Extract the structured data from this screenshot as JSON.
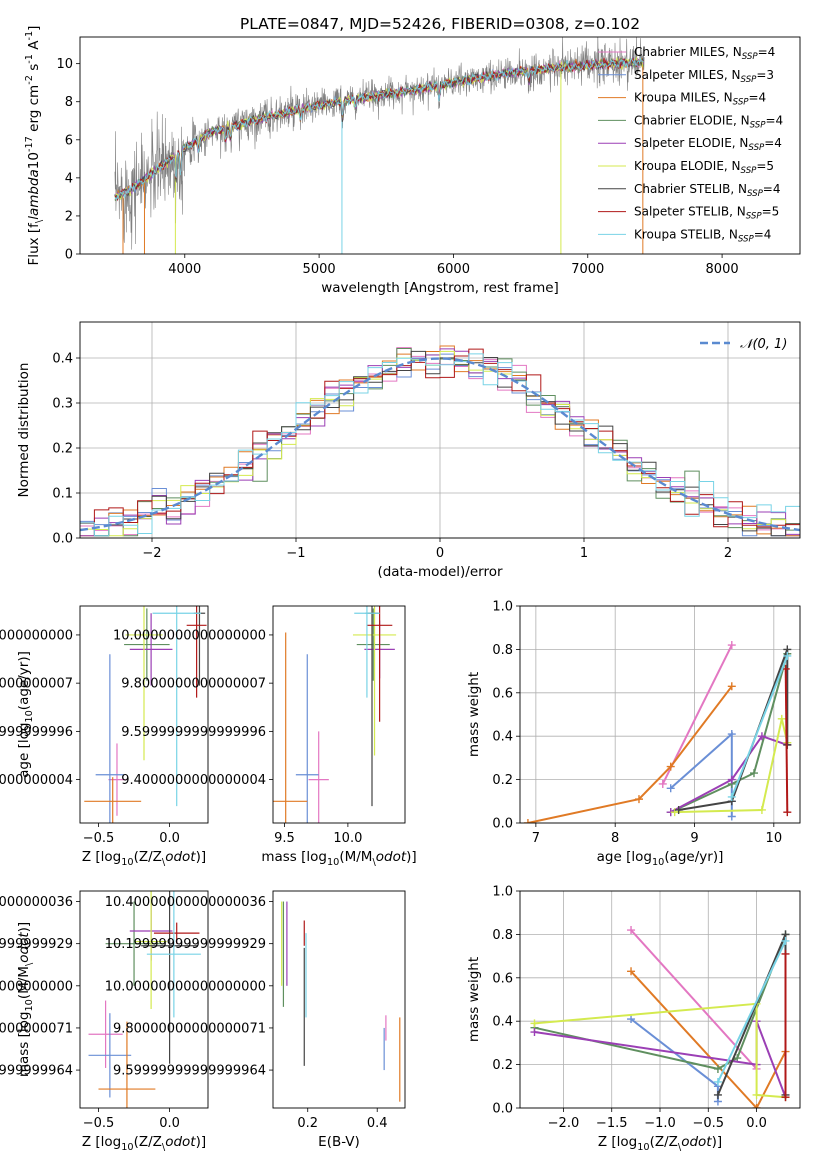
{
  "figure": {
    "title": "PLATE=0847, MJD=52426, FIBERID=0308, z=0.102"
  },
  "models": [
    {
      "name": "Chabrier MILES",
      "nssp": "4",
      "color": "#e377c2"
    },
    {
      "name": "Salpeter MILES",
      "nssp": "3",
      "color": "#6a8fd6"
    },
    {
      "name": "Kroupa MILES",
      "nssp": "4",
      "color": "#e07a25"
    },
    {
      "name": "Chabrier ELODIE",
      "nssp": "4",
      "color": "#5f8f5f"
    },
    {
      "name": "Salpeter ELODIE",
      "nssp": "4",
      "color": "#9b3fb5"
    },
    {
      "name": "Kroupa ELODIE",
      "nssp": "5",
      "color": "#d4ea4f"
    },
    {
      "name": "Chabrier STELIB",
      "nssp": "4",
      "color": "#444444"
    },
    {
      "name": "Salpeter STELIB",
      "nssp": "5",
      "color": "#b01818"
    },
    {
      "name": "Kroupa STELIB",
      "nssp": "4",
      "color": "#78d3e6"
    }
  ],
  "chart_data": [
    {
      "type": "line",
      "id": "spectrum",
      "xlabel": "wavelength [Angstrom, rest frame]",
      "ylabel": "Flux [f$_\\lambda$10$^{-17}$ erg cm$^{-2}$ s$^{-1}$ A$^{-1}$]",
      "xlim": [
        3220,
        8580
      ],
      "ylim": [
        0,
        11.4
      ],
      "xticks": [
        4000,
        5000,
        6000,
        7000,
        8000
      ],
      "yticks": [
        0,
        2,
        4,
        6,
        8,
        10
      ],
      "data_color": "#808080",
      "continuum": {
        "x": [
          3480,
          3600,
          3750,
          3900,
          4000,
          4200,
          4500,
          4800,
          5000,
          5300,
          5600,
          6000,
          6400,
          6800,
          7200,
          7400
        ],
        "y": [
          3.0,
          3.4,
          4.2,
          5.0,
          5.6,
          6.4,
          7.0,
          7.5,
          7.8,
          8.2,
          8.5,
          9.0,
          9.5,
          9.8,
          10.0,
          10.1
        ]
      },
      "grid": false
    },
    {
      "type": "bar",
      "id": "residuals",
      "xlabel": "(data-model)/error",
      "ylabel": "Normed distribution",
      "xlim": [
        -2.5,
        2.5
      ],
      "ylim": [
        0,
        0.48
      ],
      "xticks": [
        -2,
        -1,
        0,
        1,
        2
      ],
      "yticks": [
        0.0,
        0.1,
        0.2,
        0.3,
        0.4
      ],
      "legend": "$\\mathcal{N}(0, 1)$",
      "legend_position": "top-right",
      "grid": true,
      "histogram_profile": "gaussian with sigma=1, binned in 0.1 steps"
    },
    {
      "type": "scatter",
      "id": "age-vs-Z",
      "xlabel": "Z [log$_{10}$(Z/Z$_\\odot$)]",
      "ylabel": "age  [log$_{10}$(age/yr)]",
      "xlim": [
        -0.63,
        0.27
      ],
      "ylim": [
        9.22,
        10.12
      ],
      "xticks": [
        -0.5,
        0.0
      ],
      "yticks": [
        9.4,
        9.6,
        9.8,
        10.0
      ],
      "points": [
        {
          "m": 0,
          "x": -0.37,
          "y": 9.4,
          "xerr": 0.06,
          "yerr": 0.15
        },
        {
          "m": 1,
          "x": -0.42,
          "y": 9.42,
          "xerr": 0.1,
          "yerr": 0.5
        },
        {
          "m": 2,
          "x": -0.4,
          "y": 9.31,
          "xerr": 0.2,
          "yerr": 0.1
        },
        {
          "m": 3,
          "x": -0.16,
          "y": 9.96,
          "xerr": 0.16,
          "yerr": 0.15
        },
        {
          "m": 4,
          "x": -0.13,
          "y": 9.94,
          "xerr": 0.15,
          "yerr": 0.15
        },
        {
          "m": 5,
          "x": -0.18,
          "y": 10.0,
          "xerr": 0.13,
          "yerr": 0.52
        },
        {
          "m": 6,
          "x": 0.21,
          "y": 10.09,
          "xerr": 0.04,
          "yerr": 0.3
        },
        {
          "m": 7,
          "x": 0.19,
          "y": 10.04,
          "xerr": 0.07,
          "yerr": 0.3
        },
        {
          "m": 8,
          "x": 0.05,
          "y": 10.09,
          "xerr": 0.17,
          "yerr": 0.8
        }
      ]
    },
    {
      "type": "scatter",
      "id": "age-vs-mass",
      "xlabel": "mass [log$_{10}$(M/M$_\\odot$)]",
      "ylabel": "",
      "xlim": [
        9.41,
        10.45
      ],
      "ylim": [
        9.22,
        10.12
      ],
      "xticks": [
        9.5,
        10.0
      ],
      "yticks": [
        9.4,
        9.6,
        9.8,
        10.0
      ],
      "points": [
        {
          "m": 0,
          "x": 9.77,
          "y": 9.4,
          "xerr": 0.08,
          "yerr": 0.2
        },
        {
          "m": 1,
          "x": 9.68,
          "y": 9.42,
          "xerr": 0.09,
          "yerr": 0.5
        },
        {
          "m": 2,
          "x": 9.51,
          "y": 9.31,
          "xerr": 0.17,
          "yerr": 0.7
        },
        {
          "m": 3,
          "x": 10.2,
          "y": 9.96,
          "xerr": 0.13,
          "yerr": 0.15
        },
        {
          "m": 4,
          "x": 10.25,
          "y": 9.94,
          "xerr": 0.12,
          "yerr": 0.12
        },
        {
          "m": 5,
          "x": 10.21,
          "y": 10.0,
          "xerr": 0.17,
          "yerr": 0.5
        },
        {
          "m": 6,
          "x": 10.19,
          "y": 10.09,
          "xerr": 0.05,
          "yerr": 0.8
        },
        {
          "m": 7,
          "x": 10.25,
          "y": 10.04,
          "xerr": 0.1,
          "yerr": 0.4
        },
        {
          "m": 8,
          "x": 10.15,
          "y": 10.09,
          "xerr": 0.1,
          "yerr": 0.35
        }
      ]
    },
    {
      "type": "line",
      "id": "weight-vs-age",
      "xlabel": "age  [log$_{10}$(age/yr)]",
      "ylabel": "mass weight",
      "xlim": [
        6.8,
        10.33
      ],
      "ylim": [
        0,
        1.0
      ],
      "xticks": [
        7,
        8,
        9,
        10
      ],
      "yticks": [
        0.0,
        0.2,
        0.4,
        0.6,
        0.8,
        1.0
      ],
      "grid": true,
      "series": [
        {
          "m": 0,
          "x": [
            8.6,
            9.47
          ],
          "y": [
            0.18,
            0.82
          ]
        },
        {
          "m": 1,
          "x": [
            8.7,
            9.47,
            9.47,
            9.47
          ],
          "y": [
            0.16,
            0.41,
            0.1,
            0.03
          ]
        },
        {
          "m": 2,
          "x": [
            6.9,
            8.3,
            8.7,
            9.47
          ],
          "y": [
            0.0,
            0.11,
            0.26,
            0.63
          ]
        },
        {
          "m": 3,
          "x": [
            8.7,
            9.47,
            9.75,
            10.17
          ],
          "y": [
            0.05,
            0.18,
            0.23,
            0.78
          ]
        },
        {
          "m": 4,
          "x": [
            8.7,
            9.47,
            9.85,
            10.17
          ],
          "y": [
            0.05,
            0.2,
            0.4,
            0.36
          ]
        },
        {
          "m": 5,
          "x": [
            8.75,
            9.85,
            10.1,
            10.17
          ],
          "y": [
            0.05,
            0.06,
            0.48,
            0.37
          ]
        },
        {
          "m": 6,
          "x": [
            8.8,
            9.47,
            10.17,
            10.17
          ],
          "y": [
            0.06,
            0.1,
            0.8,
            0.36
          ]
        },
        {
          "m": 7,
          "x": [
            10.15,
            10.17
          ],
          "y": [
            0.71,
            0.05
          ]
        },
        {
          "m": 8,
          "x": [
            9.47,
            10.17
          ],
          "y": [
            0.12,
            0.77
          ]
        }
      ]
    },
    {
      "type": "scatter",
      "id": "mass-vs-Z",
      "xlabel": "Z [log$_{10}$(Z/Z$_\\odot$)]",
      "ylabel": "mass [log$_{10}$(M/M$_\\odot$)]",
      "xlim": [
        -0.63,
        0.27
      ],
      "ylim": [
        9.42,
        10.45
      ],
      "xticks": [
        -0.5,
        0.0
      ],
      "yticks": [
        9.6,
        9.8,
        10.0,
        10.2,
        10.4
      ],
      "points": [
        {
          "m": 0,
          "x": -0.45,
          "y": 9.77,
          "xerr": 0.12,
          "yerr": 0.16
        },
        {
          "m": 1,
          "x": -0.42,
          "y": 9.67,
          "xerr": 0.15,
          "yerr": 0.2
        },
        {
          "m": 2,
          "x": -0.3,
          "y": 9.51,
          "xerr": 0.2,
          "yerr": 0.32
        },
        {
          "m": 3,
          "x": -0.25,
          "y": 10.2,
          "xerr": 0.2,
          "yerr": 0.2
        },
        {
          "m": 4,
          "x": -0.13,
          "y": 10.26,
          "xerr": 0.15,
          "yerr": 0.14
        },
        {
          "m": 5,
          "x": -0.13,
          "y": 10.21,
          "xerr": 0.11,
          "yerr": 0.32
        },
        {
          "m": 6,
          "x": 0.0,
          "y": 10.19,
          "xerr": 0.2,
          "yerr": 0.56
        },
        {
          "m": 7,
          "x": 0.05,
          "y": 10.25,
          "xerr": 0.16,
          "yerr": 0.05
        },
        {
          "m": 8,
          "x": 0.03,
          "y": 10.15,
          "xerr": 0.19,
          "yerr": 0.3
        }
      ]
    },
    {
      "type": "scatter",
      "id": "mass-vs-ebv",
      "xlabel": "E(B-V)",
      "ylabel": "",
      "xlim": [
        0.1,
        0.48
      ],
      "ylim": [
        9.42,
        10.45
      ],
      "xticks": [
        0.2,
        0.4
      ],
      "yticks": [
        9.6,
        9.8,
        10.0,
        10.2,
        10.4
      ],
      "points": [
        {
          "m": 0,
          "x": 0.425,
          "y": 9.8,
          "xerr": 0.0,
          "yerr": 0.06
        },
        {
          "m": 1,
          "x": 0.42,
          "y": 9.7,
          "xerr": 0.0,
          "yerr": 0.1
        },
        {
          "m": 2,
          "x": 0.465,
          "y": 9.65,
          "xerr": 0.0,
          "yerr": 0.2
        },
        {
          "m": 3,
          "x": 0.13,
          "y": 10.15,
          "xerr": 0.0,
          "yerr": 0.25
        },
        {
          "m": 4,
          "x": 0.14,
          "y": 10.2,
          "xerr": 0.0,
          "yerr": 0.2
        },
        {
          "m": 5,
          "x": 0.125,
          "y": 10.2,
          "xerr": 0.0,
          "yerr": 0.2
        },
        {
          "m": 6,
          "x": 0.19,
          "y": 9.9,
          "xerr": 0.0,
          "yerr": 0.28
        },
        {
          "m": 7,
          "x": 0.19,
          "y": 10.25,
          "xerr": 0.0,
          "yerr": 0.06
        },
        {
          "m": 8,
          "x": 0.195,
          "y": 10.05,
          "xerr": 0.0,
          "yerr": 0.2
        }
      ]
    },
    {
      "type": "line",
      "id": "weight-vs-Z",
      "xlabel": "Z [log$_{10}$(Z/Z$_\\odot$)]",
      "ylabel": "mass weight",
      "xlim": [
        -2.45,
        0.45
      ],
      "ylim": [
        0,
        1.0
      ],
      "xticks": [
        -2.0,
        -1.5,
        -1.0,
        -0.5,
        0.0
      ],
      "yticks": [
        0.0,
        0.2,
        0.4,
        0.6,
        0.8,
        1.0
      ],
      "grid": true,
      "series": [
        {
          "m": 0,
          "x": [
            -1.3,
            0.0
          ],
          "y": [
            0.82,
            0.18
          ]
        },
        {
          "m": 1,
          "x": [
            -1.3,
            -0.4,
            -0.4
          ],
          "y": [
            0.41,
            0.1,
            0.03
          ]
        },
        {
          "m": 2,
          "x": [
            -1.3,
            0.0,
            0.3
          ],
          "y": [
            0.63,
            0.0,
            0.26
          ]
        },
        {
          "m": 3,
          "x": [
            -2.3,
            -0.4,
            -0.2,
            0.3
          ],
          "y": [
            0.37,
            0.18,
            0.23,
            0.8
          ]
        },
        {
          "m": 4,
          "x": [
            -2.3,
            0.0,
            0.0,
            0.3
          ],
          "y": [
            0.35,
            0.2,
            0.4,
            0.05
          ]
        },
        {
          "m": 5,
          "x": [
            -2.3,
            0.0,
            0.0,
            0.3
          ],
          "y": [
            0.39,
            0.48,
            0.06,
            0.05
          ]
        },
        {
          "m": 6,
          "x": [
            -0.4,
            0.3,
            0.3
          ],
          "y": [
            0.06,
            0.8,
            0.06
          ]
        },
        {
          "m": 7,
          "x": [
            0.3,
            0.3
          ],
          "y": [
            0.71,
            0.05
          ]
        },
        {
          "m": 8,
          "x": [
            -0.4,
            0.3
          ],
          "y": [
            0.12,
            0.77
          ]
        }
      ]
    }
  ]
}
